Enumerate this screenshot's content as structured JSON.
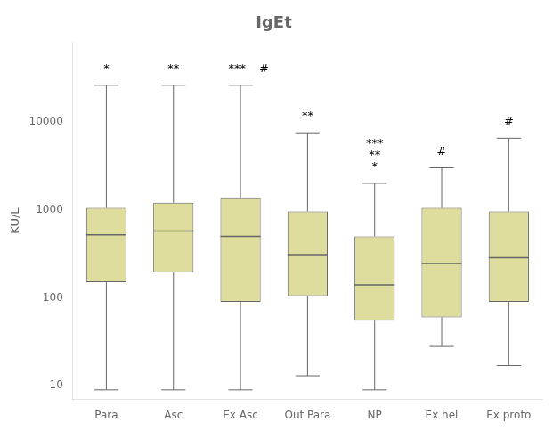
{
  "chart_data": {
    "type": "box",
    "title": "IgEt",
    "y_label": "KU/L",
    "categories": [
      "Para",
      "Asc",
      "Ex Asc",
      "Out Para",
      "NP",
      "Ex hel",
      "Ex proto"
    ],
    "color": "#dedd9e",
    "boxes": [
      {
        "whisker_low": 9,
        "q1": 150,
        "median": 520,
        "q3": 1050,
        "whisker_high": 26000,
        "annotations": [
          [
            "*"
          ]
        ]
      },
      {
        "whisker_low": 9,
        "q1": 195,
        "median": 575,
        "q3": 1200,
        "whisker_high": 26000,
        "annotations": [
          [
            "**"
          ]
        ]
      },
      {
        "whisker_low": 9,
        "q1": 90,
        "median": 500,
        "q3": 1380,
        "whisker_high": 26000,
        "annotations": [
          [
            "***",
            "#"
          ]
        ]
      },
      {
        "whisker_low": 13,
        "q1": 105,
        "median": 310,
        "q3": 960,
        "whisker_high": 7500,
        "annotations": [
          [
            "**"
          ]
        ]
      },
      {
        "whisker_low": 9,
        "q1": 55,
        "median": 140,
        "q3": 500,
        "whisker_high": 2000,
        "annotations": [
          [
            "***"
          ],
          [
            "**"
          ],
          [
            "*"
          ]
        ]
      },
      {
        "whisker_low": 28,
        "q1": 60,
        "median": 245,
        "q3": 1050,
        "whisker_high": 3000,
        "annotations": [
          [
            "#"
          ]
        ]
      },
      {
        "whisker_low": 17,
        "q1": 90,
        "median": 285,
        "q3": 960,
        "whisker_high": 6500,
        "annotations": [
          [
            "#"
          ]
        ]
      }
    ],
    "ylim": [
      7,
      80000
    ],
    "yticks": [
      10,
      100,
      1000,
      10000
    ],
    "log": "y",
    "grid": false,
    "legend": false
  }
}
